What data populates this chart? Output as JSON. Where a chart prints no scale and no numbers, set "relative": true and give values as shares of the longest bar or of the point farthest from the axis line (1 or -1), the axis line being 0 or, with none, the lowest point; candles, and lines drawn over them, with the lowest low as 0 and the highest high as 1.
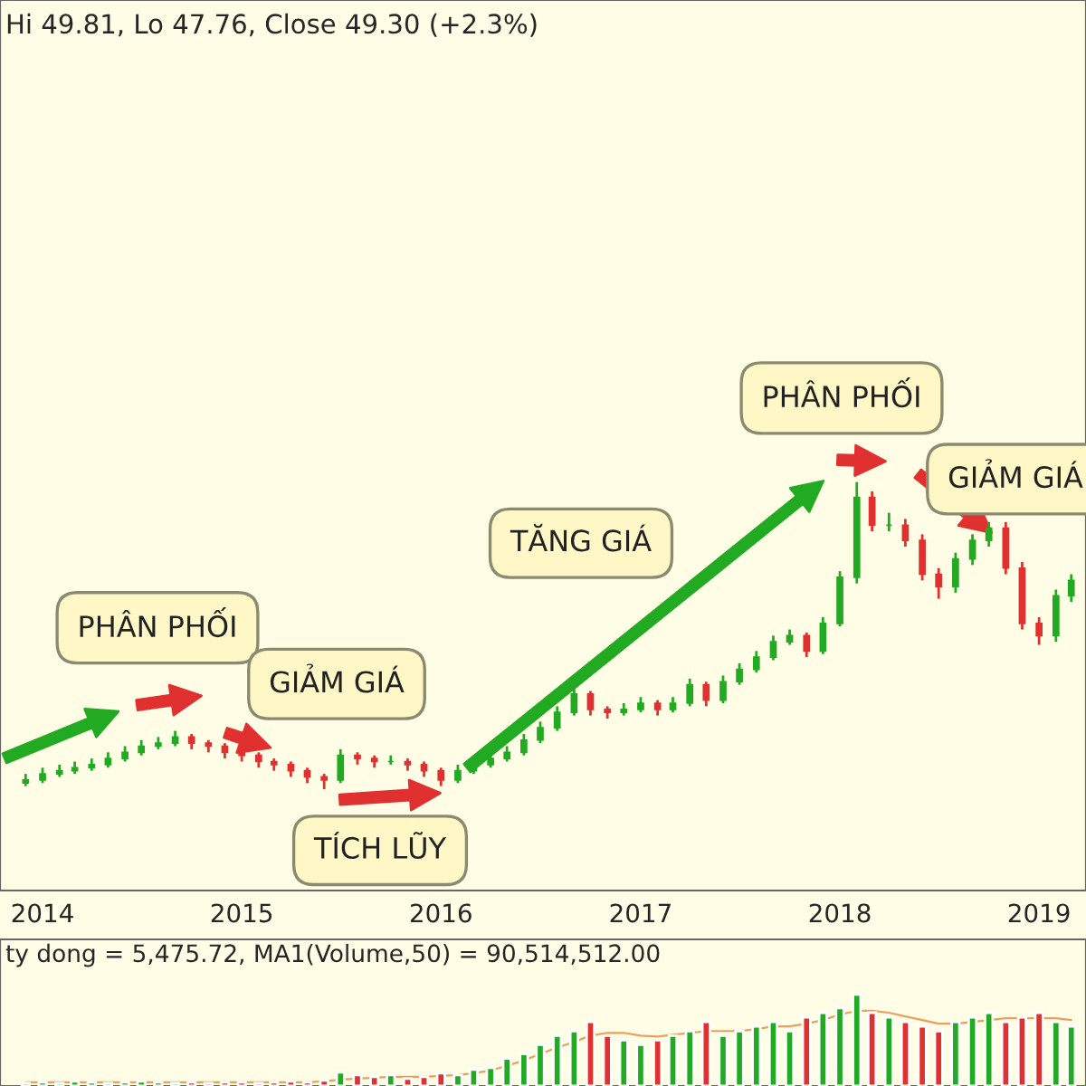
{
  "chart_data": [
    {
      "type": "candlestick",
      "relative": true,
      "x": [
        "2013-12",
        "2014-01",
        "2014-02",
        "2014-03",
        "2014-04",
        "2014-05",
        "2014-06",
        "2014-07",
        "2014-08",
        "2014-09",
        "2014-10",
        "2014-11",
        "2014-12",
        "2015-01",
        "2015-02",
        "2015-03",
        "2015-04",
        "2015-05",
        "2015-06",
        "2015-07",
        "2015-08",
        "2015-09",
        "2015-10",
        "2015-11",
        "2015-12",
        "2016-01",
        "2016-02",
        "2016-03",
        "2016-04",
        "2016-05",
        "2016-06",
        "2016-07",
        "2016-08",
        "2016-09",
        "2016-10",
        "2016-11",
        "2016-12",
        "2017-01",
        "2017-02",
        "2017-03",
        "2017-04",
        "2017-05",
        "2017-06",
        "2017-07",
        "2017-08",
        "2017-09",
        "2017-10",
        "2017-11",
        "2017-12",
        "2018-01",
        "2018-02",
        "2018-03",
        "2018-04",
        "2018-05",
        "2018-06",
        "2018-07",
        "2018-08",
        "2018-09",
        "2018-10",
        "2018-11",
        "2018-12",
        "2019-01",
        "2019-02",
        "2019-03"
      ],
      "ohlc": [
        [
          0.02,
          0.05,
          0.01,
          0.03
        ],
        [
          0.03,
          0.07,
          0.02,
          0.05
        ],
        [
          0.05,
          0.08,
          0.04,
          0.06
        ],
        [
          0.06,
          0.09,
          0.05,
          0.07
        ],
        [
          0.07,
          0.1,
          0.06,
          0.08
        ],
        [
          0.08,
          0.12,
          0.07,
          0.1
        ],
        [
          0.1,
          0.14,
          0.09,
          0.12
        ],
        [
          0.12,
          0.16,
          0.11,
          0.14
        ],
        [
          0.14,
          0.17,
          0.13,
          0.15
        ],
        [
          0.15,
          0.19,
          0.14,
          0.17
        ],
        [
          0.17,
          0.18,
          0.13,
          0.15
        ],
        [
          0.15,
          0.16,
          0.12,
          0.14
        ],
        [
          0.14,
          0.15,
          0.1,
          0.12
        ],
        [
          0.12,
          0.13,
          0.09,
          0.11
        ],
        [
          0.11,
          0.12,
          0.07,
          0.09
        ],
        [
          0.09,
          0.1,
          0.06,
          0.08
        ],
        [
          0.08,
          0.09,
          0.04,
          0.06
        ],
        [
          0.06,
          0.07,
          0.02,
          0.04
        ],
        [
          0.04,
          0.05,
          0.0,
          0.03
        ],
        [
          0.03,
          0.13,
          0.02,
          0.11
        ],
        [
          0.11,
          0.12,
          0.08,
          0.1
        ],
        [
          0.1,
          0.11,
          0.07,
          0.09
        ],
        [
          0.09,
          0.11,
          0.08,
          0.09
        ],
        [
          0.09,
          0.1,
          0.06,
          0.08
        ],
        [
          0.08,
          0.09,
          0.04,
          0.06
        ],
        [
          0.06,
          0.07,
          0.01,
          0.03
        ],
        [
          0.03,
          0.08,
          0.02,
          0.06
        ],
        [
          0.06,
          0.1,
          0.05,
          0.08
        ],
        [
          0.08,
          0.12,
          0.07,
          0.1
        ],
        [
          0.1,
          0.14,
          0.09,
          0.12
        ],
        [
          0.12,
          0.18,
          0.11,
          0.16
        ],
        [
          0.16,
          0.22,
          0.15,
          0.2
        ],
        [
          0.2,
          0.27,
          0.19,
          0.25
        ],
        [
          0.25,
          0.33,
          0.24,
          0.31
        ],
        [
          0.31,
          0.32,
          0.24,
          0.26
        ],
        [
          0.26,
          0.27,
          0.23,
          0.25
        ],
        [
          0.25,
          0.28,
          0.24,
          0.26
        ],
        [
          0.26,
          0.3,
          0.25,
          0.28
        ],
        [
          0.28,
          0.29,
          0.24,
          0.26
        ],
        [
          0.26,
          0.3,
          0.25,
          0.28
        ],
        [
          0.28,
          0.36,
          0.27,
          0.34
        ],
        [
          0.34,
          0.35,
          0.27,
          0.29
        ],
        [
          0.29,
          0.37,
          0.28,
          0.35
        ],
        [
          0.35,
          0.41,
          0.34,
          0.39
        ],
        [
          0.39,
          0.45,
          0.38,
          0.43
        ],
        [
          0.43,
          0.5,
          0.42,
          0.48
        ],
        [
          0.48,
          0.52,
          0.47,
          0.5
        ],
        [
          0.5,
          0.51,
          0.43,
          0.45
        ],
        [
          0.45,
          0.56,
          0.44,
          0.54
        ],
        [
          0.54,
          0.71,
          0.53,
          0.69
        ],
        [
          0.69,
          1.0,
          0.67,
          0.95
        ],
        [
          0.95,
          0.97,
          0.84,
          0.86
        ],
        [
          0.86,
          0.9,
          0.84,
          0.86
        ],
        [
          0.86,
          0.88,
          0.79,
          0.81
        ],
        [
          0.81,
          0.83,
          0.68,
          0.7
        ],
        [
          0.7,
          0.72,
          0.62,
          0.66
        ],
        [
          0.66,
          0.77,
          0.64,
          0.75
        ],
        [
          0.75,
          0.83,
          0.73,
          0.81
        ],
        [
          0.81,
          0.87,
          0.79,
          0.85
        ],
        [
          0.85,
          0.87,
          0.7,
          0.72
        ],
        [
          0.72,
          0.74,
          0.52,
          0.54
        ],
        [
          0.54,
          0.56,
          0.47,
          0.5
        ],
        [
          0.5,
          0.65,
          0.48,
          0.63
        ],
        [
          0.63,
          0.7,
          0.61,
          0.68
        ]
      ],
      "colors": [
        "#22aa22",
        "#22aa22",
        "#22aa22",
        "#22aa22",
        "#22aa22",
        "#22aa22",
        "#22aa22",
        "#22aa22",
        "#22aa22",
        "#22aa22",
        "#e03030",
        "#e03030",
        "#e03030",
        "#e03030",
        "#e03030",
        "#e03030",
        "#e03030",
        "#e03030",
        "#e03030",
        "#22aa22",
        "#e03030",
        "#e03030",
        "#22aa22",
        "#e03030",
        "#e03030",
        "#e03030",
        "#22aa22",
        "#22aa22",
        "#22aa22",
        "#22aa22",
        "#22aa22",
        "#22aa22",
        "#22aa22",
        "#22aa22",
        "#e03030",
        "#e03030",
        "#22aa22",
        "#22aa22",
        "#e03030",
        "#22aa22",
        "#22aa22",
        "#e03030",
        "#22aa22",
        "#22aa22",
        "#22aa22",
        "#22aa22",
        "#22aa22",
        "#e03030",
        "#22aa22",
        "#22aa22",
        "#22aa22",
        "#e03030",
        "#22aa22",
        "#e03030",
        "#e03030",
        "#e03030",
        "#22aa22",
        "#22aa22",
        "#22aa22",
        "#e03030",
        "#e03030",
        "#e03030",
        "#22aa22",
        "#22aa22"
      ],
      "xlim": [
        "2013-10-15",
        "2019-03-28"
      ],
      "xticks": [
        {
          "value": "2014-01-01",
          "label": "2014"
        },
        {
          "value": "2015-01-01",
          "label": "2015"
        },
        {
          "value": "2016-01-01",
          "label": "2016"
        },
        {
          "value": "2017-01-01",
          "label": "2017"
        },
        {
          "value": "2018-01-01",
          "label": "2018"
        },
        {
          "value": "2019-01-01",
          "label": "2019"
        }
      ],
      "annotations": [
        "Hi 49.81, Lo 47.76, Close 49.30 (+2.3%)",
        "PHÂN PHỐI",
        "GIẢM GIÁ",
        "TÍCH LŨY",
        "TĂNG GIÁ",
        "PHÂN PHỐI",
        "GIẢM GIÁ"
      ]
    },
    {
      "type": "bar",
      "relative": true,
      "x": [
        "2013-12",
        "2014-01",
        "2014-02",
        "2014-03",
        "2014-04",
        "2014-05",
        "2014-06",
        "2014-07",
        "2014-08",
        "2014-09",
        "2014-10",
        "2014-11",
        "2014-12",
        "2015-01",
        "2015-02",
        "2015-03",
        "2015-04",
        "2015-05",
        "2015-06",
        "2015-07",
        "2015-08",
        "2015-09",
        "2015-10",
        "2015-11",
        "2015-12",
        "2016-01",
        "2016-02",
        "2016-03",
        "2016-04",
        "2016-05",
        "2016-06",
        "2016-07",
        "2016-08",
        "2016-09",
        "2016-10",
        "2016-11",
        "2016-12",
        "2017-01",
        "2017-02",
        "2017-03",
        "2017-04",
        "2017-05",
        "2017-06",
        "2017-07",
        "2017-08",
        "2017-09",
        "2017-10",
        "2017-11",
        "2017-12",
        "2018-01",
        "2018-02",
        "2018-03",
        "2018-04",
        "2018-05",
        "2018-06",
        "2018-07",
        "2018-08",
        "2018-09",
        "2018-10",
        "2018-11",
        "2018-12",
        "2019-01",
        "2019-02",
        "2019-03"
      ],
      "xlim": [
        "2013-10-15",
        "2019-03-28"
      ],
      "series": [
        {
          "type": "bar",
          "values": [
            0.03,
            0.04,
            0.03,
            0.05,
            0.04,
            0.03,
            0.04,
            0.05,
            0.04,
            0.03,
            0.04,
            0.03,
            0.04,
            0.04,
            0.03,
            0.04,
            0.05,
            0.04,
            0.06,
            0.15,
            0.12,
            0.1,
            0.12,
            0.08,
            0.1,
            0.14,
            0.12,
            0.18,
            0.2,
            0.3,
            0.35,
            0.45,
            0.55,
            0.6,
            0.7,
            0.55,
            0.5,
            0.45,
            0.5,
            0.55,
            0.6,
            0.7,
            0.55,
            0.6,
            0.65,
            0.7,
            0.6,
            0.75,
            0.8,
            0.85,
            1.0,
            0.8,
            0.75,
            0.7,
            0.65,
            0.6,
            0.7,
            0.75,
            0.8,
            0.7,
            0.75,
            0.8,
            0.7,
            0.65
          ],
          "colors": [
            "#22aa22",
            "#22aa22",
            "#22aa22",
            "#22aa22",
            "#22aa22",
            "#22aa22",
            "#22aa22",
            "#22aa22",
            "#22aa22",
            "#22aa22",
            "#e03030",
            "#e03030",
            "#e03030",
            "#e03030",
            "#e03030",
            "#e03030",
            "#e03030",
            "#e03030",
            "#e03030",
            "#22aa22",
            "#e03030",
            "#e03030",
            "#22aa22",
            "#e03030",
            "#e03030",
            "#e03030",
            "#22aa22",
            "#22aa22",
            "#22aa22",
            "#22aa22",
            "#22aa22",
            "#22aa22",
            "#22aa22",
            "#22aa22",
            "#e03030",
            "#e03030",
            "#22aa22",
            "#22aa22",
            "#e03030",
            "#22aa22",
            "#22aa22",
            "#e03030",
            "#22aa22",
            "#22aa22",
            "#22aa22",
            "#22aa22",
            "#22aa22",
            "#e03030",
            "#22aa22",
            "#22aa22",
            "#22aa22",
            "#e03030",
            "#22aa22",
            "#e03030",
            "#e03030",
            "#e03030",
            "#22aa22",
            "#22aa22",
            "#22aa22",
            "#e03030",
            "#e03030",
            "#e03030",
            "#22aa22",
            "#22aa22"
          ]
        },
        {
          "type": "line",
          "color": "#e8a060",
          "values": [
            0.04,
            0.04,
            0.04,
            0.04,
            0.04,
            0.04,
            0.04,
            0.04,
            0.04,
            0.04,
            0.04,
            0.04,
            0.04,
            0.04,
            0.04,
            0.04,
            0.04,
            0.04,
            0.05,
            0.07,
            0.08,
            0.09,
            0.1,
            0.1,
            0.1,
            0.11,
            0.12,
            0.14,
            0.17,
            0.22,
            0.28,
            0.35,
            0.42,
            0.48,
            0.55,
            0.58,
            0.58,
            0.55,
            0.54,
            0.56,
            0.58,
            0.6,
            0.6,
            0.6,
            0.62,
            0.65,
            0.65,
            0.68,
            0.72,
            0.78,
            0.82,
            0.82,
            0.8,
            0.76,
            0.72,
            0.68,
            0.68,
            0.7,
            0.72,
            0.74,
            0.74,
            0.74,
            0.74,
            0.72
          ]
        }
      ],
      "annotations": [
        "ty dong = 5,475.72, MA1(Volume,50) = 90,514,512.00"
      ]
    }
  ]
}
